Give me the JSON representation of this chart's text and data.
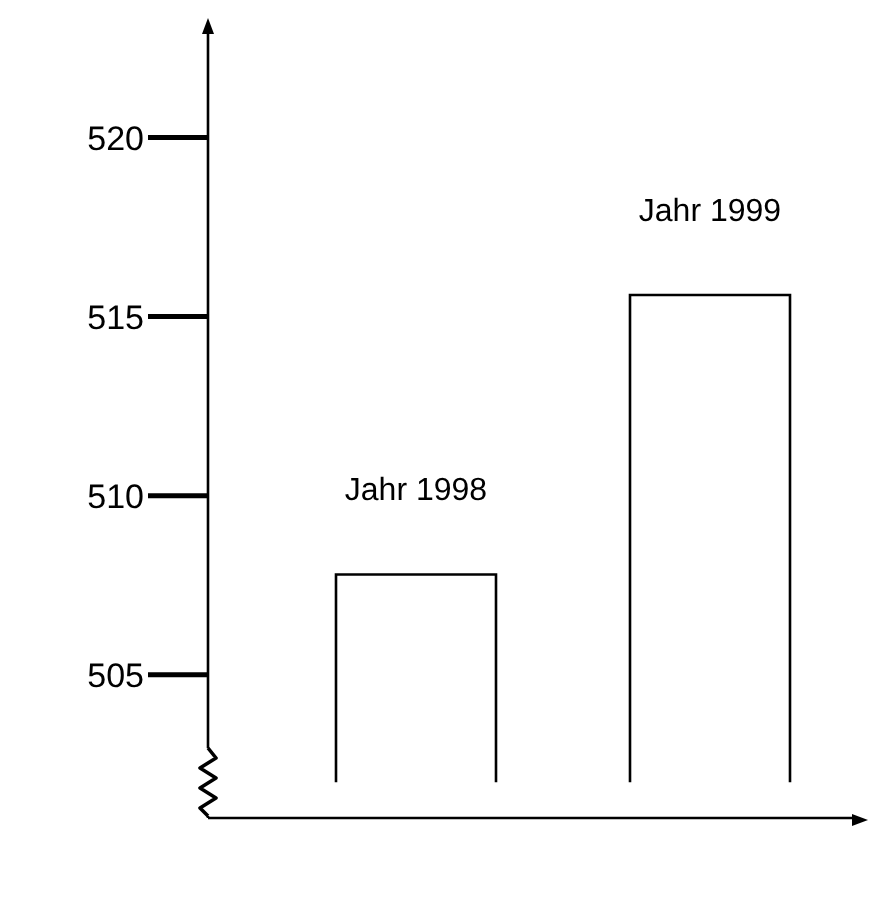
{
  "chart_data": {
    "type": "bar",
    "categories": [
      "Jahr 1998",
      "Jahr 1999"
    ],
    "base": [
      502,
      502
    ],
    "values": [
      5.8,
      13.6
    ],
    "color": "#ffffff",
    "ylim": [
      501,
      523
    ],
    "yticks": [
      505,
      510,
      515,
      520
    ],
    "tick_labels": "y",
    "grid": false,
    "legend": false
  }
}
